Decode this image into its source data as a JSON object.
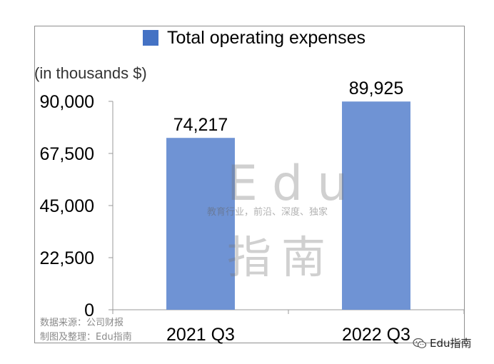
{
  "legend": {
    "label": "Total operating expenses",
    "color": "#4472c4"
  },
  "unit_label": "(in thousands $)",
  "chart_data": {
    "type": "bar",
    "categories": [
      "2021 Q3",
      "2022 Q3"
    ],
    "series": [
      {
        "name": "Total operating expenses",
        "values": [
          74217,
          89925
        ],
        "color": "#6f93d4"
      }
    ],
    "data_labels": [
      "74,217",
      "89,925"
    ],
    "ylim": [
      0,
      90000
    ],
    "yticks": [
      0,
      22500,
      45000,
      67500,
      90000
    ],
    "ytick_labels": [
      "0",
      "22,500",
      "45,000",
      "67,500",
      "90,000"
    ],
    "ylabel": "(in thousands $)",
    "grid": false,
    "legend_position": "top"
  },
  "source": {
    "line1": "数据来源：公司财报",
    "line2": "制图及整理：Edu指南"
  },
  "watermark": {
    "latin": "Edu",
    "tagline": "教育行业，前沿、深度、独家",
    "cjk": "指南"
  },
  "brand": {
    "icon": "wechat-icon",
    "text": "Edu指南"
  }
}
